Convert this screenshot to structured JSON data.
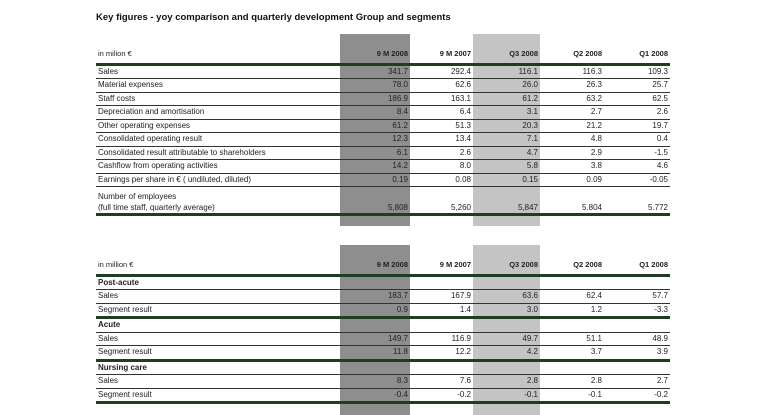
{
  "title": "Key figures - yoy comparison and quarterly development Group and segments",
  "columns": [
    "9 M 2008",
    "9 M 2007",
    "Q3 2008",
    "Q2 2008",
    "Q1 2008"
  ],
  "table1": {
    "unit": "in milion €",
    "rows": [
      {
        "label": "Sales",
        "values": [
          "341.7",
          "292.4",
          "116.1",
          "116.3",
          "109.3"
        ]
      },
      {
        "label": "Material expenses",
        "values": [
          "78.0",
          "62.6",
          "26.0",
          "26.3",
          "25.7"
        ]
      },
      {
        "label": "Staff costs",
        "values": [
          "186.9",
          "163.1",
          "61.2",
          "63.2",
          "62.5"
        ]
      },
      {
        "label": "Depreciation  and amortisation",
        "values": [
          "8.4",
          "6.4",
          "3.1",
          "2.7",
          "2.6"
        ]
      },
      {
        "label": "Other operating expenses",
        "values": [
          "61.2",
          "51.3",
          "20.3",
          "21.2",
          "19.7"
        ]
      },
      {
        "label": "Consolidated operating result",
        "values": [
          "12.3",
          "13.4",
          "7.1",
          "4.8",
          "0.4"
        ]
      },
      {
        "label": "Consolidated result attributable to shareholders",
        "values": [
          "6.1",
          "2.6",
          "4.7",
          "2.9",
          "-1.5"
        ]
      },
      {
        "label": "Cashflow from operating activities",
        "values": [
          "14.2",
          "8.0",
          "5.8",
          "3.8",
          "4.6"
        ]
      },
      {
        "label": "Earnings per share in € ( undiluted, diluted)",
        "values": [
          "0.19",
          "0.08",
          "0.15",
          "0.09",
          "-0.05"
        ]
      }
    ],
    "employees": {
      "label1": "Number of employees",
      "label2": "(full time staff, quarterly average)",
      "values": [
        "5,808",
        "5,260",
        "5,847",
        "5.804",
        "5.772"
      ]
    }
  },
  "table2": {
    "unit": "in million €",
    "segments": [
      {
        "name": "Post-acute",
        "rows": [
          {
            "label": "Sales",
            "values": [
              "183.7",
              "167.9",
              "63.6",
              "62.4",
              "57.7"
            ]
          },
          {
            "label": "Segment result",
            "values": [
              "0.9",
              "1.4",
              "3.0",
              "1.2",
              "-3.3"
            ]
          }
        ]
      },
      {
        "name": "Acute",
        "rows": [
          {
            "label": "Sales",
            "values": [
              "149.7",
              "116.9",
              "49.7",
              "51.1",
              "48.9"
            ]
          },
          {
            "label": "Segment result",
            "values": [
              "11.8",
              "12.2",
              "4.2",
              "3.7",
              "3.9"
            ]
          }
        ]
      },
      {
        "name": "Nursing care",
        "rows": [
          {
            "label": "Sales",
            "values": [
              "8.3",
              "7.6",
              "2.8",
              "2.8",
              "2.7"
            ]
          },
          {
            "label": "Segment result",
            "values": [
              "-0.4",
              "-0.2",
              "-0.1",
              "-0.1",
              "-0.2"
            ]
          }
        ]
      }
    ]
  }
}
